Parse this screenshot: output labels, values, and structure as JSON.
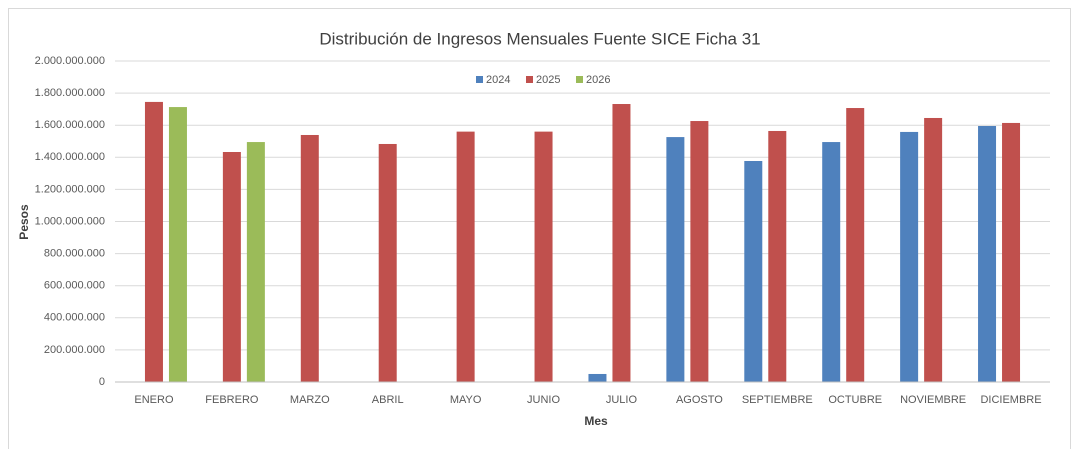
{
  "chart_data": {
    "type": "bar",
    "title": "Distribución de Ingresos Mensuales Fuente SICE Ficha 31",
    "x_label": "Mes",
    "y_label": "Pesos",
    "categories": [
      "ENERO",
      "FEBRERO",
      "MARZO",
      "ABRIL",
      "MAYO",
      "JUNIO",
      "JULIO",
      "AGOSTO",
      "SEPTIEMBRE",
      "OCTUBRE",
      "NOVIEMBRE",
      "DICIEMBRE"
    ],
    "series": [
      {
        "name": "2024",
        "color": "#4f81bd",
        "values": [
          null,
          null,
          null,
          null,
          null,
          null,
          50000000,
          1526000000,
          1377000000,
          1495000000,
          1558000000,
          1595000000
        ]
      },
      {
        "name": "2025",
        "color": "#c0504d",
        "values": [
          1745000000,
          1433000000,
          1539000000,
          1483000000,
          1560000000,
          1560000000,
          1732000000,
          1626000000,
          1564000000,
          1707000000,
          1645000000,
          1614000000
        ]
      },
      {
        "name": "2026",
        "color": "#9bbb59",
        "values": [
          1713000000,
          1495000000,
          null,
          null,
          null,
          null,
          null,
          null,
          null,
          null,
          null,
          null
        ]
      }
    ],
    "ylim": [
      0,
      2000000000
    ],
    "yticks": [
      0,
      {
        "value": 200000000,
        "label": "200.000.000"
      },
      {
        "value": 400000000,
        "label": "400.000.000"
      },
      {
        "value": 600000000,
        "label": "600.000.000"
      },
      {
        "value": 800000000,
        "label": "800.000.000"
      },
      {
        "value": 1000000000,
        "label": "1.000.000.000"
      },
      {
        "value": 1200000000,
        "label": "1.200.000.000"
      },
      {
        "value": 1400000000,
        "label": "1.400.000.000"
      },
      {
        "value": 1600000000,
        "label": "1.600.000.000"
      },
      {
        "value": 1800000000,
        "label": "1.800.000.000"
      },
      {
        "value": 2000000000,
        "label": "2.000.000.000"
      }
    ],
    "grid": true,
    "legend": "top"
  }
}
